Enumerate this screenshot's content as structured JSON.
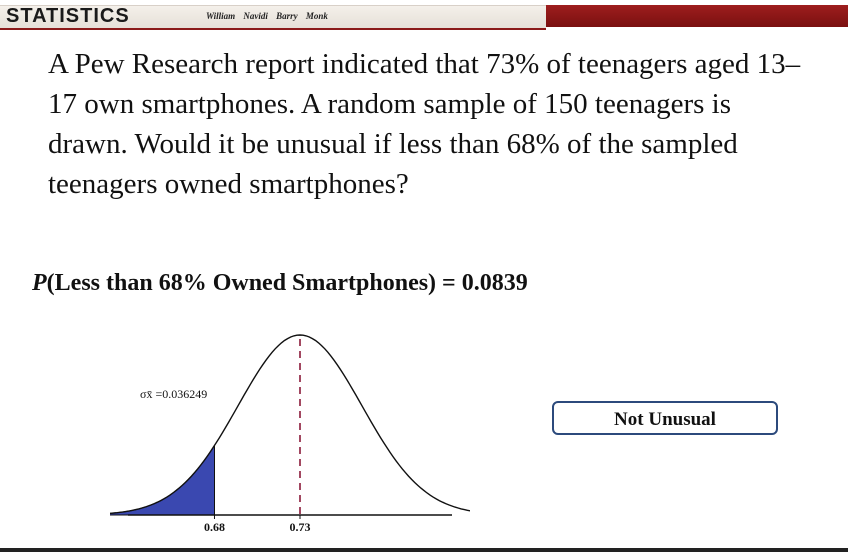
{
  "header": {
    "brand": "STATISTICS",
    "authors": "William Navidi Barry Monk"
  },
  "question": {
    "text": "A Pew Research report indicated that 73% of teenagers aged 13–17 own smartphones. A random sample of 150 teenagers is drawn. Would it be unusual if less than 68% of the sampled teenagers owned smartphones?"
  },
  "result": {
    "p_symbol": "P",
    "expression": "(Less than 68% Owned Smartphones) = 0.0839"
  },
  "chart_data": {
    "type": "area",
    "distribution": "normal",
    "mean": 0.73,
    "sd": 0.036249,
    "shaded_upper": 0.68,
    "sigma_label": "σx̄ =0.036249",
    "tick_labels": [
      "0.68",
      "0.73"
    ],
    "colors": {
      "shade": "#3a48b0",
      "mean_line": "#8b1a3a",
      "curve": "#111111"
    }
  },
  "answer": {
    "label": "Not Unusual"
  }
}
